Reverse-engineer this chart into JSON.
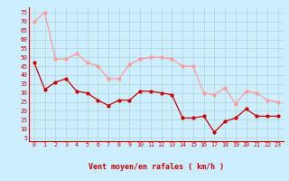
{
  "hours": [
    0,
    1,
    2,
    3,
    4,
    5,
    6,
    7,
    8,
    9,
    10,
    11,
    12,
    13,
    14,
    15,
    16,
    17,
    18,
    19,
    20,
    21,
    22,
    23
  ],
  "wind_avg": [
    47,
    32,
    36,
    38,
    31,
    30,
    26,
    23,
    26,
    26,
    31,
    31,
    30,
    29,
    16,
    16,
    17,
    8,
    14,
    16,
    21,
    17,
    17,
    17
  ],
  "wind_gust": [
    70,
    75,
    49,
    49,
    52,
    47,
    45,
    38,
    38,
    46,
    49,
    50,
    50,
    49,
    45,
    45,
    30,
    29,
    33,
    24,
    31,
    30,
    26,
    25
  ],
  "arrow_angles": [
    45,
    45,
    45,
    45,
    45,
    45,
    45,
    45,
    45,
    45,
    45,
    45,
    45,
    45,
    0,
    45,
    45,
    45,
    45,
    45,
    90,
    90,
    90,
    90
  ],
  "xlabel": "Vent moyen/en rafales ( km/h )",
  "yticks": [
    5,
    10,
    15,
    20,
    25,
    30,
    35,
    40,
    45,
    50,
    55,
    60,
    65,
    70,
    75
  ],
  "ylim": [
    3,
    78
  ],
  "xlim": [
    -0.5,
    23.5
  ],
  "bg_color": "#cceeff",
  "grid_color": "#b0d4d4",
  "avg_color": "#cc0000",
  "gust_color": "#ff9999",
  "label_color": "#cc0000",
  "arrow_color": "#cc0000",
  "spine_color": "#cc0000"
}
